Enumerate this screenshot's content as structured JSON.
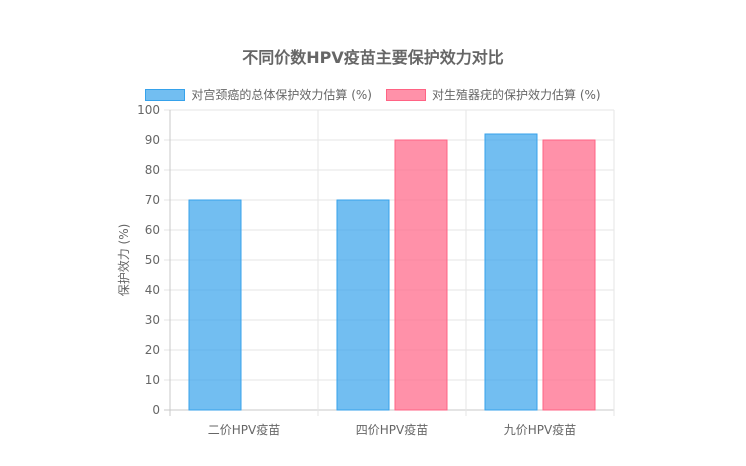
{
  "chart_data": {
    "type": "bar",
    "title": "不同价数HPV疫苗主要保护效力对比",
    "categories": [
      "二价HPV疫苗",
      "四价HPV疫苗",
      "九价HPV疫苗"
    ],
    "series": [
      {
        "name": "对宫颈癌的总体保护效力估算 (%)",
        "values": [
          70,
          70,
          92
        ],
        "color": "#36a2eb",
        "fill": "rgba(54,162,235,0.7)"
      },
      {
        "name": "对生殖器疣的保护效力估算 (%)",
        "values": [
          null,
          90,
          90
        ],
        "color": "#ff6384",
        "fill": "rgba(255,99,132,0.7)"
      }
    ],
    "xlabel": "",
    "ylabel": "保护效力 (%)",
    "ylim": [
      0,
      100
    ],
    "yticks": [
      0,
      10,
      20,
      30,
      40,
      50,
      60,
      70,
      80,
      90,
      100
    ],
    "grid": true,
    "legend_position": "top"
  }
}
